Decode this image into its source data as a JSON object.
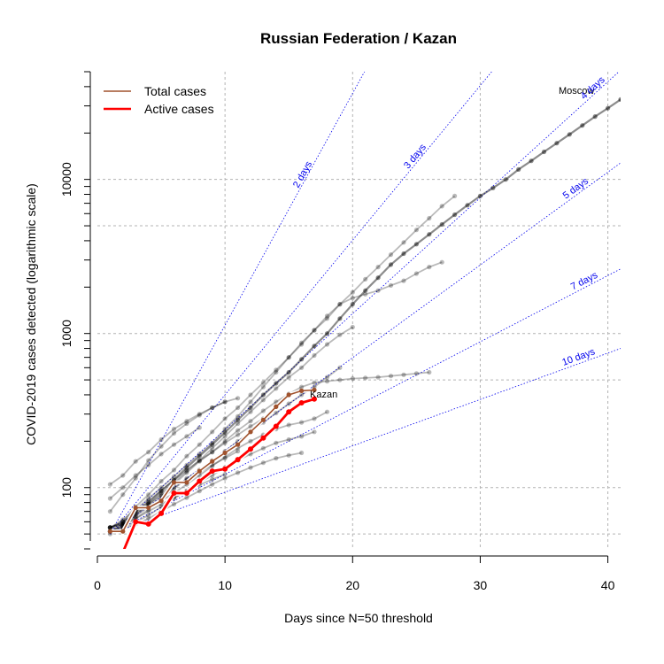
{
  "chart_data": {
    "type": "line",
    "title": "Russian Federation / Kazan",
    "xlabel": "Days since N=50 threshold",
    "ylabel": "COVID-2019 cases detected (logarithmic scale)",
    "xlim": [
      0,
      41
    ],
    "ylim": [
      40,
      50000
    ],
    "y_scale": "log",
    "x_ticks": [
      0,
      10,
      20,
      30,
      40
    ],
    "y_ticks": [
      100,
      1000,
      10000
    ],
    "grid": true,
    "legend_position": "top-left",
    "legend": [
      {
        "label": "Total cases",
        "color": "#a0522d"
      },
      {
        "label": "Active cases",
        "color": "#ff0000"
      }
    ],
    "doubling_lines": [
      {
        "label": "2 days",
        "days": 2
      },
      {
        "label": "3 days",
        "days": 3
      },
      {
        "label": "4 days",
        "days": 4
      },
      {
        "label": "5 days",
        "days": 5
      },
      {
        "label": "7 days",
        "days": 7
      },
      {
        "label": "10 days",
        "days": 10
      }
    ],
    "series": [
      {
        "name": "Moscow",
        "values": [
          55,
          58,
          70,
          80,
          95,
          112,
          135,
          160,
          190,
          228,
          275,
          330,
          400,
          475,
          560,
          680,
          830,
          1000,
          1250,
          1550,
          1900,
          2300,
          2800,
          3300,
          3800,
          4400,
          5100,
          5900,
          6800,
          7800,
          8800,
          10000,
          11600,
          13200,
          15100,
          17200,
          19600,
          22400,
          25600,
          29000,
          33000,
          37000
        ]
      },
      {
        "name": "Kazan",
        "values": [
          52,
          52,
          74,
          74,
          82,
          108,
          108,
          128,
          148,
          168,
          190,
          230,
          275,
          335,
          400,
          425,
          430
        ]
      },
      {
        "name": "Kazan (active)",
        "values": [
          38,
          38,
          60,
          58,
          68,
          92,
          92,
          110,
          128,
          132,
          152,
          178,
          210,
          250,
          310,
          355,
          375
        ]
      },
      {
        "values": [
          55,
          60,
          75,
          90,
          110,
          130,
          160,
          190,
          230,
          280,
          330,
          400,
          480,
          580,
          700,
          850,
          1050,
          1250,
          1550,
          1850,
          2250,
          2700,
          3250,
          3900,
          4700,
          5600,
          6700,
          7800
        ]
      },
      {
        "values": [
          55,
          62,
          72,
          85,
          100,
          118,
          140,
          165,
          195,
          240,
          290,
          360,
          450,
          560,
          700,
          870,
          1050,
          1300,
          1550,
          1700,
          1800,
          1900,
          2050,
          2200,
          2450,
          2700,
          2900
        ]
      },
      {
        "values": [
          52,
          56,
          66,
          78,
          92,
          108,
          128,
          150,
          180,
          215,
          260,
          310,
          370,
          440,
          520,
          600,
          720,
          850,
          980,
          1100
        ]
      },
      {
        "values": [
          52,
          58,
          67,
          78,
          90,
          105,
          125,
          148,
          170,
          200,
          235,
          270,
          315,
          360,
          405,
          450,
          480,
          490,
          500,
          510,
          515,
          520,
          530,
          540,
          550,
          560
        ]
      },
      {
        "values": [
          52,
          57,
          65,
          75,
          85,
          98,
          115,
          130,
          150,
          172,
          200,
          230,
          265,
          305,
          350,
          400,
          450,
          520,
          600
        ]
      },
      {
        "values": [
          52,
          56,
          63,
          72,
          82,
          92,
          105,
          120,
          138,
          158,
          180,
          200,
          220,
          240,
          255,
          265,
          280,
          310
        ]
      },
      {
        "values": [
          52,
          55,
          60,
          66,
          75,
          85,
          95,
          108,
          120,
          135,
          150,
          165,
          180,
          195,
          205,
          215,
          230
        ]
      },
      {
        "values": [
          50,
          54,
          58,
          63,
          70,
          78,
          86,
          95,
          105,
          115,
          125,
          135,
          145,
          155,
          162,
          168
        ]
      },
      {
        "values": [
          105,
          120,
          148,
          170,
          205,
          240,
          270,
          300,
          330,
          360,
          380
        ]
      },
      {
        "values": [
          70,
          90,
          115,
          150,
          185,
          225,
          260,
          295,
          330,
          360
        ]
      },
      {
        "values": [
          85,
          100,
          120,
          140,
          165,
          190,
          215,
          245
        ]
      },
      {
        "values": [
          55,
          60,
          70,
          82,
          96,
          112,
          130,
          150,
          170,
          195,
          220,
          250,
          280
        ]
      },
      {
        "values": [
          55,
          60,
          68,
          77,
          88,
          100,
          113,
          126,
          140,
          155,
          172
        ]
      },
      {
        "values": [
          55,
          58,
          63,
          70,
          78,
          86,
          95,
          104,
          113,
          122
        ]
      }
    ]
  },
  "labels": {
    "moscow": "Moscow",
    "kazan": "Kazan"
  },
  "colors": {
    "background": "#ffffff",
    "grid": "#b3b3b3",
    "other_cities": "#000000",
    "total_kazan": "#a0522d",
    "active_kazan": "#ff0000",
    "reference_lines": "#0000ee"
  }
}
